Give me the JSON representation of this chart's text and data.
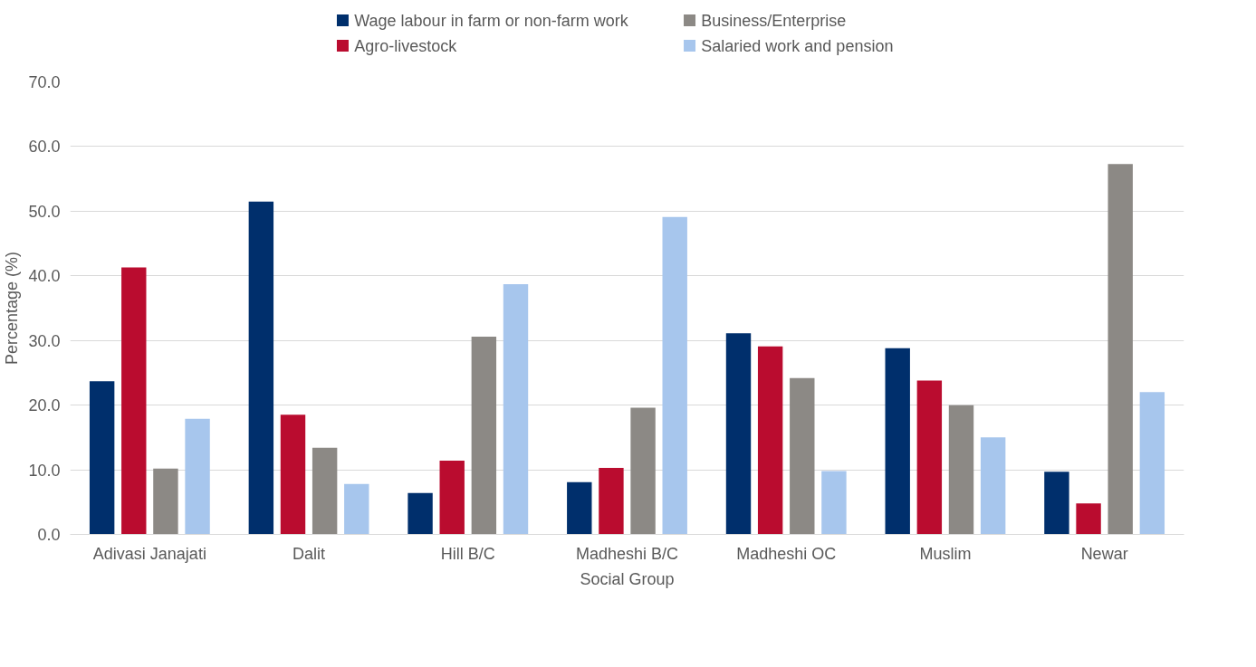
{
  "chart_data": {
    "type": "bar",
    "xlabel": "Social Group",
    "ylabel": "Percentage (%)",
    "categories": [
      "Adivasi Janajati",
      "Dalit",
      "Hill B/C",
      "Madheshi B/C",
      "Madheshi OC",
      "Muslim",
      "Newar"
    ],
    "series": [
      {
        "name": "Wage labour in farm or non-farm work",
        "color": "#002f6c",
        "values": [
          23.7,
          51.5,
          6.4,
          8.1,
          31.1,
          28.8,
          9.7
        ]
      },
      {
        "name": "Agro-livestock",
        "color": "#ba0c2f",
        "values": [
          41.3,
          18.5,
          11.4,
          10.3,
          29.1,
          23.8,
          4.8
        ]
      },
      {
        "name": "Business/Enterprise",
        "color": "#8c8985",
        "values": [
          10.2,
          13.4,
          30.6,
          19.6,
          24.2,
          20.0,
          57.3
        ]
      },
      {
        "name": "Salaried work and pension",
        "color": "#a7c6ed",
        "values": [
          17.9,
          7.8,
          38.7,
          49.1,
          9.8,
          15.0,
          22.0
        ]
      }
    ],
    "ylim": [
      0,
      70
    ],
    "yticks": [
      {
        "value": 0,
        "label": "0.0"
      },
      {
        "value": 10,
        "label": "10.0"
      },
      {
        "value": 20,
        "label": "20.0"
      },
      {
        "value": 30,
        "label": "30.0"
      },
      {
        "value": 40,
        "label": "40.0"
      },
      {
        "value": 50,
        "label": "50.0"
      },
      {
        "value": 60,
        "label": "60.0"
      },
      {
        "value": 70,
        "label": "70.0"
      }
    ],
    "grid": "y",
    "legend": "top"
  }
}
